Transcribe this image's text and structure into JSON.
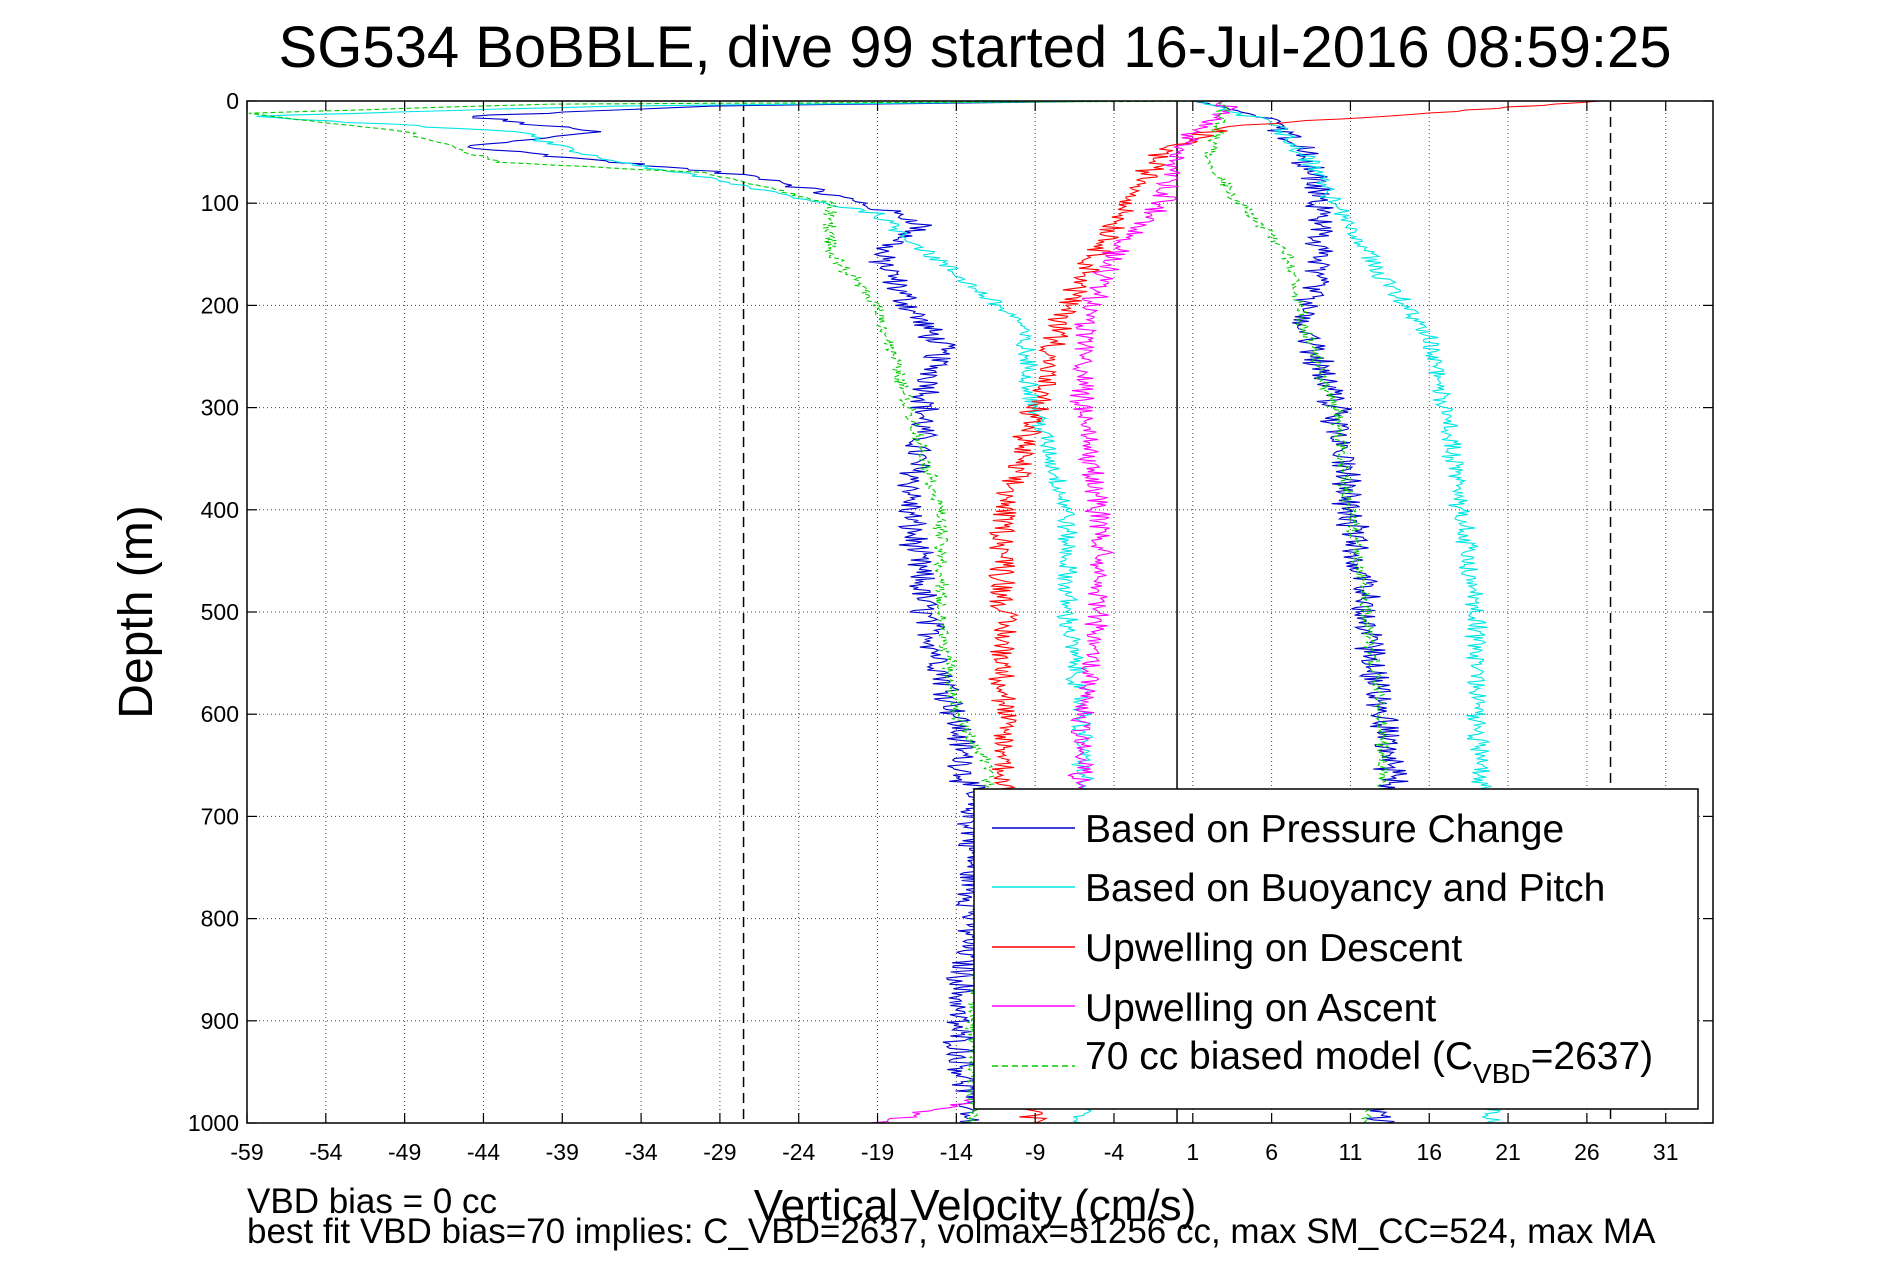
{
  "chart_data": {
    "type": "line",
    "title": "SG534 BoBBLE, dive 99 started 16-Jul-2016 08:59:25",
    "xlabel": "Vertical Velocity (cm/s)",
    "ylabel": "Depth (m)",
    "xlim": [
      -59,
      34
    ],
    "ylim": [
      1000,
      0
    ],
    "y_inverted": true,
    "grid": true,
    "x_ticks": [
      -59,
      -54,
      -49,
      -44,
      -39,
      -34,
      -29,
      -24,
      -19,
      -14,
      -9,
      -4,
      1,
      6,
      11,
      16,
      21,
      26,
      31
    ],
    "y_ticks": [
      0,
      100,
      200,
      300,
      400,
      500,
      600,
      700,
      800,
      900,
      1000
    ],
    "x_tick_labels": [
      "-59",
      "-54",
      "-49",
      "-44",
      "-39",
      "-34",
      "-29",
      "-24",
      "-19",
      "-14",
      "-9",
      "-4",
      "1",
      "6",
      "11",
      "16",
      "21",
      "26",
      "31"
    ],
    "y_tick_labels": [
      "0",
      "100",
      "200",
      "300",
      "400",
      "500",
      "600",
      "700",
      "800",
      "900",
      "1000"
    ],
    "reference_lines": {
      "solid_x": 0,
      "dashed_x": [
        -27.5,
        27.5
      ]
    },
    "legend_position": "bottom-right",
    "series": [
      {
        "name": "Based on Pressure Change",
        "color": "#0000cc",
        "style": "solid",
        "noise": 0.9,
        "descent": [
          [
            -4,
            0
          ],
          [
            -30,
            5
          ],
          [
            -45,
            15
          ],
          [
            -37,
            30
          ],
          [
            -45,
            45
          ],
          [
            -26,
            75
          ],
          [
            -20,
            100
          ],
          [
            -16,
            120
          ],
          [
            -19,
            150
          ],
          [
            -17,
            200
          ],
          [
            -15,
            240
          ],
          [
            -16,
            300
          ],
          [
            -17,
            400
          ],
          [
            -16,
            500
          ],
          [
            -14,
            600
          ],
          [
            -13,
            700
          ],
          [
            -13,
            800
          ],
          [
            -14,
            900
          ],
          [
            -13,
            1000
          ]
        ],
        "ascent": [
          [
            13,
            1000
          ],
          [
            12,
            900
          ],
          [
            13,
            800
          ],
          [
            14,
            700
          ],
          [
            13,
            600
          ],
          [
            12,
            500
          ],
          [
            11,
            400
          ],
          [
            10,
            300
          ],
          [
            8,
            220
          ],
          [
            9,
            150
          ],
          [
            9,
            100
          ],
          [
            8,
            50
          ],
          [
            6,
            20
          ],
          [
            3,
            5
          ],
          [
            1,
            0
          ]
        ]
      },
      {
        "name": "Based on Buoyancy and Pitch",
        "color": "#00e5e5",
        "style": "solid",
        "noise": 0.6,
        "descent": [
          [
            -4,
            0
          ],
          [
            -36,
            5
          ],
          [
            -59,
            15
          ],
          [
            -42,
            30
          ],
          [
            -37,
            55
          ],
          [
            -30,
            75
          ],
          [
            -24,
            95
          ],
          [
            -19,
            110
          ],
          [
            -14,
            170
          ],
          [
            -10,
            215
          ],
          [
            -9,
            300
          ],
          [
            -7,
            400
          ],
          [
            -7,
            500
          ],
          [
            -6,
            600
          ],
          [
            -6,
            700
          ],
          [
            -6,
            800
          ],
          [
            -6,
            900
          ],
          [
            -6,
            1000
          ]
        ],
        "ascent": [
          [
            20,
            1000
          ],
          [
            20,
            800
          ],
          [
            19,
            600
          ],
          [
            19,
            500
          ],
          [
            18,
            400
          ],
          [
            17,
            300
          ],
          [
            16,
            230
          ],
          [
            13,
            170
          ],
          [
            10,
            100
          ],
          [
            8,
            50
          ],
          [
            6,
            20
          ],
          [
            1,
            0
          ]
        ]
      },
      {
        "name": "Upwelling on Descent",
        "color": "#ff0000",
        "style": "solid",
        "noise": 0.8,
        "descent": [
          [
            27,
            0
          ],
          [
            3,
            25
          ],
          [
            -1,
            50
          ],
          [
            -3,
            100
          ],
          [
            -5,
            150
          ],
          [
            -7,
            200
          ],
          [
            -8,
            250
          ],
          [
            -9,
            300
          ],
          [
            -11,
            400
          ],
          [
            -11,
            500
          ],
          [
            -11,
            600
          ],
          [
            -11,
            700
          ],
          [
            -10,
            800
          ],
          [
            -10,
            900
          ],
          [
            -9,
            1000
          ]
        ],
        "ascent": []
      },
      {
        "name": "Upwelling on Ascent",
        "color": "#ff00ff",
        "style": "solid",
        "noise": 0.7,
        "descent": [],
        "ascent": [
          [
            -19,
            1000
          ],
          [
            -8,
            960
          ],
          [
            -7,
            900
          ],
          [
            -6,
            800
          ],
          [
            -6,
            700
          ],
          [
            -6,
            600
          ],
          [
            -5,
            500
          ],
          [
            -5,
            400
          ],
          [
            -6,
            300
          ],
          [
            -6,
            220
          ],
          [
            -4,
            150
          ],
          [
            -1,
            100
          ],
          [
            0,
            60
          ],
          [
            1,
            30
          ],
          [
            3,
            10
          ],
          [
            3,
            0
          ]
        ]
      },
      {
        "name": "70 cc biased model (C_VBD=2637)",
        "color": "#00cc00",
        "style": "dashed",
        "noise": 0.4,
        "descent": [
          [
            4,
            0
          ],
          [
            -40,
            3
          ],
          [
            -59,
            12
          ],
          [
            -49,
            30
          ],
          [
            -46,
            45
          ],
          [
            -43,
            60
          ],
          [
            -30,
            70
          ],
          [
            -22,
            100
          ],
          [
            -22,
            150
          ],
          [
            -19,
            200
          ],
          [
            -17,
            300
          ],
          [
            -15,
            400
          ],
          [
            -15,
            500
          ],
          [
            -14,
            600
          ],
          [
            -12,
            650
          ],
          [
            -12,
            700
          ],
          [
            -12,
            800
          ],
          [
            -13,
            900
          ],
          [
            -13,
            1000
          ]
        ],
        "ascent": [
          [
            12,
            1000
          ],
          [
            12,
            800
          ],
          [
            13,
            700
          ],
          [
            13,
            600
          ],
          [
            12,
            500
          ],
          [
            11,
            400
          ],
          [
            10,
            300
          ],
          [
            8,
            220
          ],
          [
            7,
            150
          ],
          [
            4,
            100
          ],
          [
            2,
            60
          ],
          [
            3,
            10
          ],
          [
            3,
            0
          ]
        ]
      }
    ],
    "legend_entries": [
      "Based on Pressure Change",
      "Based on Buoyancy and Pitch",
      "Upwelling on Descent",
      "Upwelling on Ascent",
      "70 cc biased model (C",
      "VBD",
      "=2637)"
    ],
    "annotations": [
      "VBD bias = 0 cc",
      "best fit VBD bias=70 implies: C_VBD=2637, volmax=51256 cc, max SM_CC=524, max MA"
    ]
  }
}
